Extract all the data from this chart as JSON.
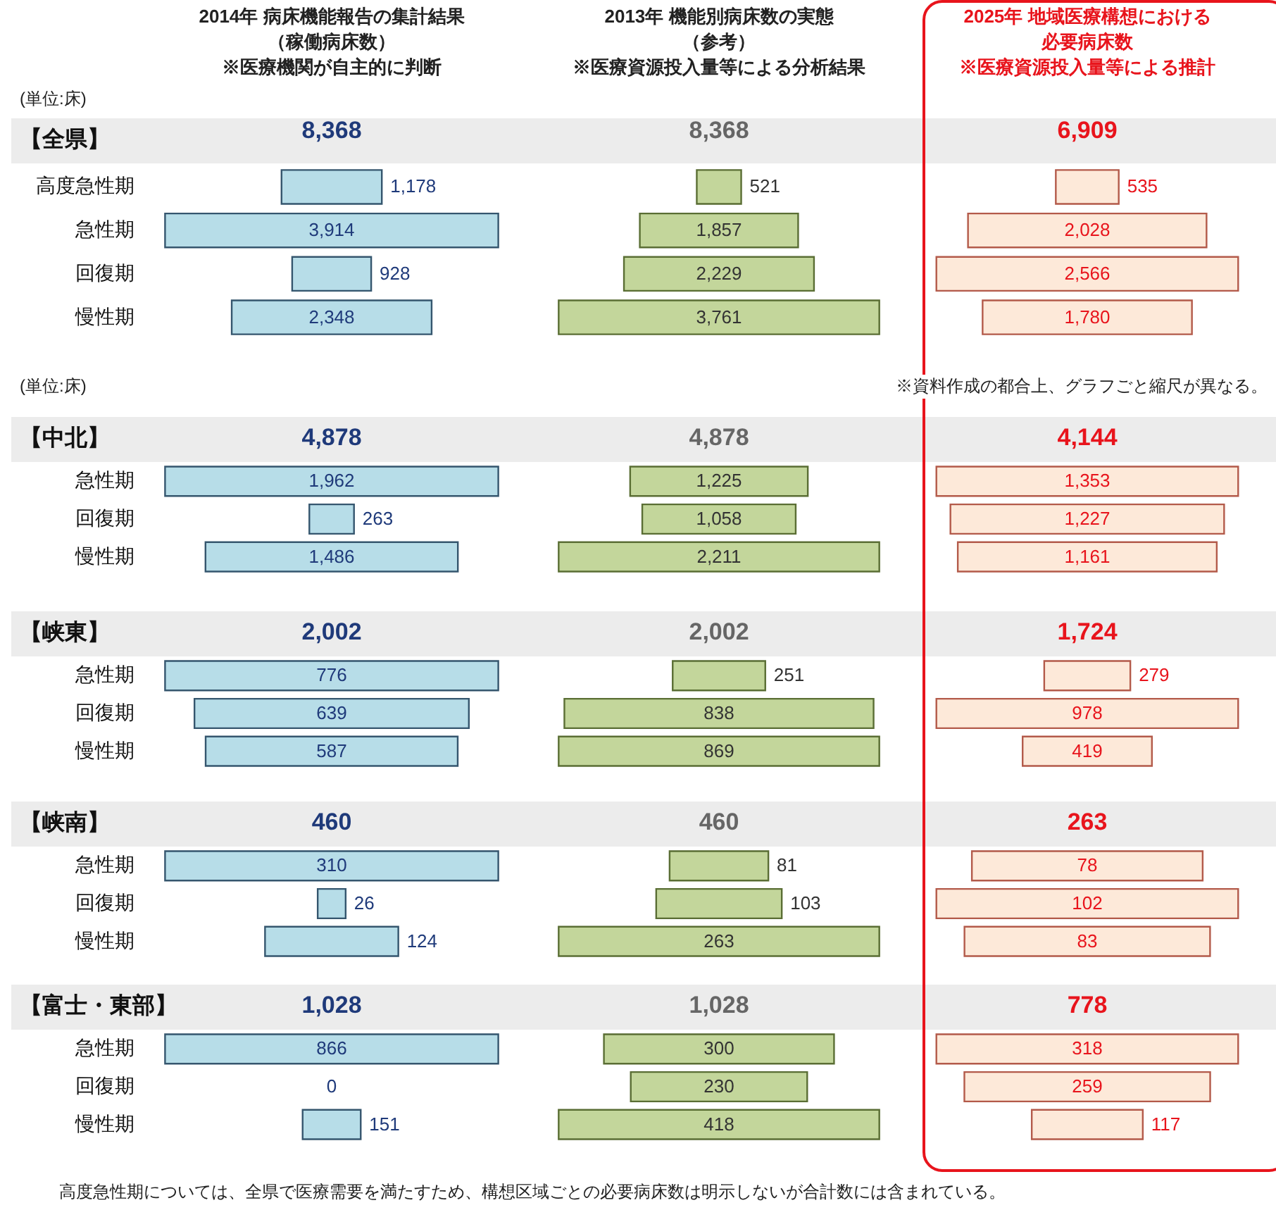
{
  "chart_data": [
    {
      "type": "other",
      "title": "2014年 病床機能報告の集計結果（稼働病床数）※医療機関が自主的に判断",
      "subtitle": "8,368",
      "categories": [
        "高度急性期",
        "急性期",
        "回復期",
        "慢性期"
      ],
      "series": [
        {
          "color": "#b7dde8",
          "values": [
            1178,
            3914,
            928,
            2348
          ],
          "value_labels": [
            "1,178",
            "3,914",
            "928",
            "2,348"
          ]
        }
      ],
      "annotations": [
        "【全県】",
        "(単位:床)"
      ]
    },
    {
      "type": "other",
      "title": "2013年 機能別病床数の実態（参考）※医療資源投入量等による分析結果",
      "subtitle": "8,368",
      "series": [
        {
          "color": "#c3d69b",
          "values": [
            521,
            1857,
            2229,
            3761
          ],
          "value_labels": [
            "521",
            "1,857",
            "2,229",
            "3,761"
          ]
        }
      ]
    },
    {
      "type": "other",
      "title": "2025年 地域医療構想における必要病床数※医療資源投入量等による推計",
      "subtitle": "6,909",
      "series": [
        {
          "color": "#fde9d9",
          "values": [
            535,
            2028,
            2566,
            1780
          ],
          "value_labels": [
            "535",
            "2,028",
            "2,566",
            "1,780"
          ]
        }
      ]
    },
    {
      "type": "other",
      "title": "4,878",
      "categories": [
        "急性期",
        "回復期",
        "慢性期"
      ],
      "series": [
        {
          "color": "#b7dde8",
          "values": [
            1962,
            263,
            1486
          ],
          "value_labels": [
            "1,962",
            "263",
            "1,486"
          ]
        }
      ],
      "annotations": [
        "【中北】",
        "(単位:床)",
        "※資料作成の都合上、グラフごと縮尺が異なる。"
      ]
    },
    {
      "type": "other",
      "title": "4,878",
      "series": [
        {
          "color": "#c3d69b",
          "values": [
            1225,
            1058,
            2211
          ],
          "value_labels": [
            "1,225",
            "1,058",
            "2,211"
          ]
        }
      ]
    },
    {
      "type": "other",
      "title": "4,144",
      "series": [
        {
          "color": "#fde9d9",
          "values": [
            1353,
            1227,
            1161
          ],
          "value_labels": [
            "1,353",
            "1,227",
            "1,161"
          ]
        }
      ]
    },
    {
      "type": "other",
      "title": "2,002",
      "categories": [
        "急性期",
        "回復期",
        "慢性期"
      ],
      "series": [
        {
          "color": "#b7dde8",
          "values": [
            776,
            639,
            587
          ],
          "value_labels": [
            "776",
            "639",
            "587"
          ]
        }
      ],
      "annotations": [
        "【峡東】"
      ]
    },
    {
      "type": "other",
      "title": "2,002",
      "series": [
        {
          "color": "#c3d69b",
          "values": [
            251,
            838,
            869
          ],
          "value_labels": [
            "251",
            "838",
            "869"
          ]
        }
      ]
    },
    {
      "type": "other",
      "title": "1,724",
      "series": [
        {
          "color": "#fde9d9",
          "values": [
            279,
            978,
            419
          ],
          "value_labels": [
            "279",
            "978",
            "419"
          ]
        }
      ]
    },
    {
      "type": "other",
      "title": "460",
      "categories": [
        "急性期",
        "回復期",
        "慢性期"
      ],
      "series": [
        {
          "color": "#b7dde8",
          "values": [
            310,
            26,
            124
          ],
          "value_labels": [
            "310",
            "26",
            "124"
          ]
        }
      ],
      "annotations": [
        "【峡南】"
      ]
    },
    {
      "type": "other",
      "title": "460",
      "series": [
        {
          "color": "#c3d69b",
          "values": [
            81,
            103,
            263
          ],
          "value_labels": [
            "81",
            "103",
            "263"
          ]
        }
      ]
    },
    {
      "type": "other",
      "title": "263",
      "series": [
        {
          "color": "#fde9d9",
          "values": [
            78,
            102,
            83
          ],
          "value_labels": [
            "78",
            "102",
            "83"
          ]
        }
      ]
    },
    {
      "type": "other",
      "title": "1,028",
      "categories": [
        "急性期",
        "回復期",
        "慢性期"
      ],
      "series": [
        {
          "color": "#b7dde8",
          "values": [
            866,
            0,
            151
          ],
          "value_labels": [
            "866",
            "0",
            "151"
          ]
        }
      ],
      "annotations": [
        "【富士・東部】",
        "高度急性期については、全県で医療需要を満たすため、構想区域ごとの必要病床数は明示しないが合計数には含まれている。"
      ]
    },
    {
      "type": "other",
      "title": "1,028",
      "series": [
        {
          "color": "#c3d69b",
          "values": [
            300,
            230,
            418
          ],
          "value_labels": [
            "300",
            "230",
            "418"
          ]
        }
      ]
    },
    {
      "type": "other",
      "title": "778",
      "series": [
        {
          "color": "#fde9d9",
          "values": [
            318,
            259,
            117
          ],
          "value_labels": [
            "318",
            "259",
            "117"
          ]
        }
      ]
    }
  ]
}
